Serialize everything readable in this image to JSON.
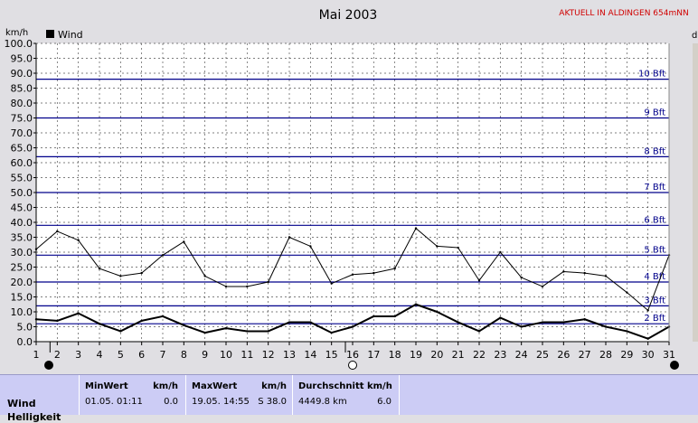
{
  "header": {
    "title": "Mai 2003",
    "aktuell": "AKTUELL IN ALDINGEN 654mNN",
    "y_unit_left": "km/h",
    "y_unit_right": "d"
  },
  "chart_data": {
    "type": "line",
    "ylim": [
      0,
      100
    ],
    "xlim": [
      1,
      31
    ],
    "y_ticks": [
      "0.0",
      "5.0",
      "10.0",
      "15.0",
      "20.0",
      "25.0",
      "30.0",
      "35.0",
      "40.0",
      "45.0",
      "50.0",
      "55.0",
      "60.0",
      "65.0",
      "70.0",
      "75.0",
      "80.0",
      "85.0",
      "90.0",
      "95.0",
      "100.0"
    ],
    "x_ticks": [
      "1",
      "2",
      "3",
      "4",
      "5",
      "6",
      "7",
      "8",
      "9",
      "10",
      "11",
      "12",
      "13",
      "14",
      "15",
      "16",
      "17",
      "18",
      "19",
      "20",
      "21",
      "22",
      "23",
      "24",
      "25",
      "26",
      "27",
      "28",
      "29",
      "30",
      "31"
    ],
    "x": [
      1,
      2,
      3,
      4,
      5,
      6,
      7,
      8,
      9,
      10,
      11,
      12,
      13,
      14,
      15,
      16,
      17,
      18,
      19,
      20,
      21,
      22,
      23,
      24,
      25,
      26,
      27,
      28,
      29,
      30,
      31
    ],
    "legend": [
      "Wind"
    ],
    "series": [
      {
        "name": "Wind",
        "role": "max",
        "values": [
          31,
          37,
          34,
          24.5,
          22,
          23,
          29,
          33.5,
          22,
          18.5,
          18.5,
          20,
          35,
          32,
          19.5,
          22.5,
          23,
          24.5,
          38,
          32,
          31.5,
          20.5,
          30,
          21.5,
          18.5,
          23.5,
          23,
          22,
          16.5,
          10.5,
          29
        ]
      },
      {
        "name": "Wind",
        "role": "avg",
        "values": [
          7.5,
          7,
          9.5,
          6,
          3.5,
          7,
          8.5,
          5.5,
          3,
          4.5,
          3.5,
          3.5,
          6.5,
          6.5,
          3,
          5,
          8.5,
          8.5,
          12.5,
          10,
          6.5,
          3.5,
          8,
          5,
          6.5,
          6.5,
          7.5,
          5,
          3.5,
          1,
          5
        ]
      }
    ],
    "beaufort": [
      {
        "label": "2 Bft",
        "y": 6
      },
      {
        "label": "3 Bft",
        "y": 12
      },
      {
        "label": "4 Bft",
        "y": 20
      },
      {
        "label": "5 Bft",
        "y": 29
      },
      {
        "label": "6 Bft",
        "y": 39
      },
      {
        "label": "7 Bft",
        "y": 50
      },
      {
        "label": "8 Bft",
        "y": 62
      },
      {
        "label": "9 Bft",
        "y": 75
      },
      {
        "label": "10 Bft",
        "y": 88
      }
    ],
    "moon_markers": [
      {
        "day": 1,
        "phase": "new"
      },
      {
        "day": 16,
        "phase": "full"
      },
      {
        "day": 31,
        "phase": "new"
      }
    ]
  },
  "stats": {
    "row_label": "Wind",
    "row_label_2": "Helligkeit",
    "min": {
      "header": "MinWert",
      "unit": "km/h",
      "date": "01.05.  01:11",
      "value": "0.0"
    },
    "max": {
      "header": "MaxWert",
      "unit": "km/h",
      "date": "19.05.  14:55",
      "value": "S 38.0"
    },
    "avg": {
      "header": "Durchschnitt km/h",
      "distance": "4449.8 km",
      "value": "6.0"
    }
  },
  "colors": {
    "background": "#e0dfe3",
    "plot_bg": "#ffffff",
    "grid": "#555555",
    "beaufort": "#00008b",
    "series": "#000000",
    "stats_bg": "#ccccf5"
  }
}
